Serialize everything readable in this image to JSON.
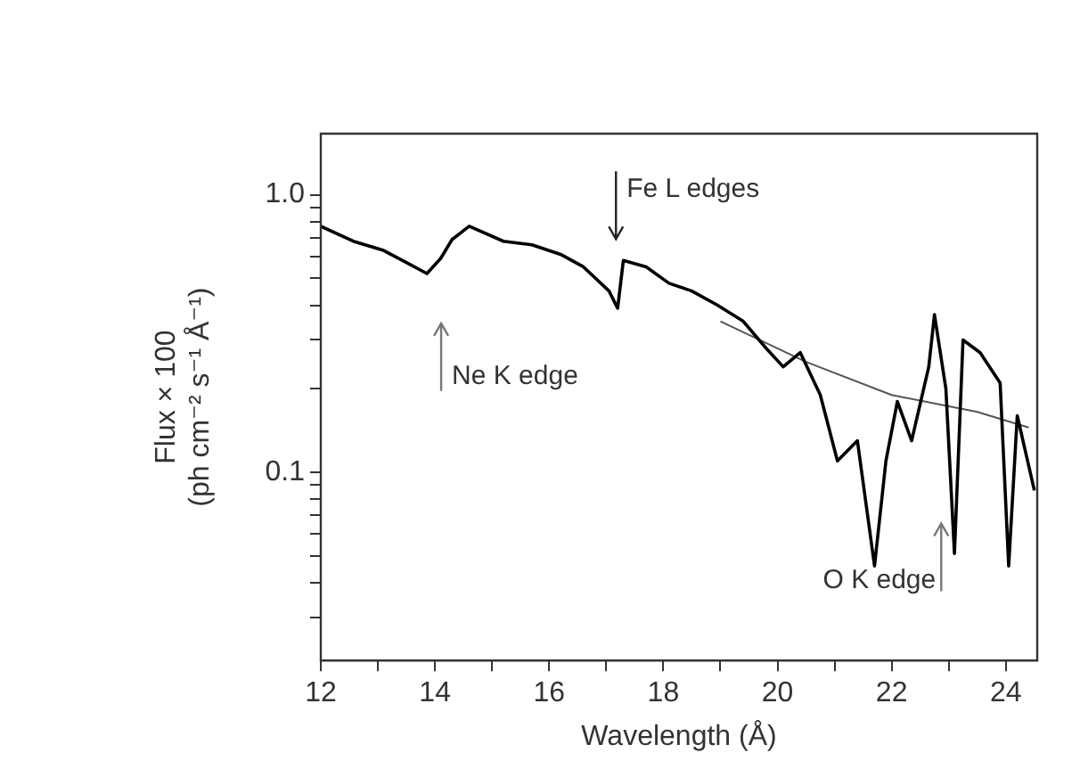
{
  "chart_data": {
    "type": "line",
    "xlabel": "Wavelength (Å)",
    "ylabel": "Flux × 100 (ph cm⁻² s⁻¹ Å⁻¹)",
    "log": "y",
    "grid": false,
    "legend": false,
    "marker": "none",
    "line_style": "solid",
    "xlim": [
      12,
      24.55
    ],
    "ylim": [
      0.021,
      1.66
    ],
    "xticks": [
      12,
      {
        "value": 13,
        "label": null
      },
      14,
      {
        "value": 15,
        "label": null
      },
      16,
      {
        "value": 17,
        "label": null
      },
      18,
      {
        "value": 19,
        "label": null
      },
      20,
      {
        "value": 21,
        "label": null
      },
      22,
      {
        "value": 23,
        "label": null
      },
      24
    ],
    "yticks": [
      {
        "value": 0.03,
        "label": null
      },
      {
        "value": 0.04,
        "label": null
      },
      {
        "value": 0.05,
        "label": null
      },
      {
        "value": 0.06,
        "label": null
      },
      {
        "value": 0.07,
        "label": null
      },
      {
        "value": 0.08,
        "label": null
      },
      {
        "value": 0.09,
        "label": null
      },
      {
        "value": 0.1,
        "label": "0.1"
      },
      {
        "value": 0.2,
        "label": null
      },
      {
        "value": 0.3,
        "label": null
      },
      {
        "value": 0.4,
        "label": null
      },
      {
        "value": 0.5,
        "label": null
      },
      {
        "value": 0.6,
        "label": null
      },
      {
        "value": 0.7,
        "label": null
      },
      {
        "value": 0.8,
        "label": null
      },
      {
        "value": 0.9,
        "label": null
      },
      {
        "value": 1,
        "label": "1.0"
      }
    ],
    "series": [
      {
        "color": "#000000",
        "x": [
          12.0,
          12.57,
          13.1,
          13.5,
          13.86,
          14.1,
          14.3,
          14.6,
          15.2,
          15.7,
          16.2,
          16.6,
          17.05,
          17.2,
          17.3,
          17.7,
          18.1,
          18.5,
          18.95,
          19.4,
          19.8,
          20.1,
          20.4,
          20.75,
          21.05,
          21.4,
          21.7,
          21.9,
          22.1,
          22.35,
          22.65,
          22.75,
          22.95,
          23.1,
          23.25,
          23.55,
          23.9,
          24.05,
          24.2,
          24.5
        ],
        "values": [
          0.77,
          0.68,
          0.63,
          0.57,
          0.52,
          0.59,
          0.69,
          0.77,
          0.68,
          0.66,
          0.61,
          0.55,
          0.45,
          0.39,
          0.58,
          0.55,
          0.48,
          0.45,
          0.4,
          0.35,
          0.28,
          0.24,
          0.27,
          0.19,
          0.11,
          0.13,
          0.046,
          0.11,
          0.18,
          0.13,
          0.24,
          0.37,
          0.2,
          0.051,
          0.3,
          0.27,
          0.21,
          0.046,
          0.16,
          0.086
        ]
      },
      {
        "color": "#555555",
        "x": [
          19.0,
          20.5,
          22.0,
          23.5,
          24.4
        ],
        "values": [
          0.35,
          0.25,
          0.19,
          0.165,
          0.145
        ]
      }
    ],
    "annotations": [
      "Fe L edges",
      "Ne K edge",
      "O K edge"
    ]
  }
}
